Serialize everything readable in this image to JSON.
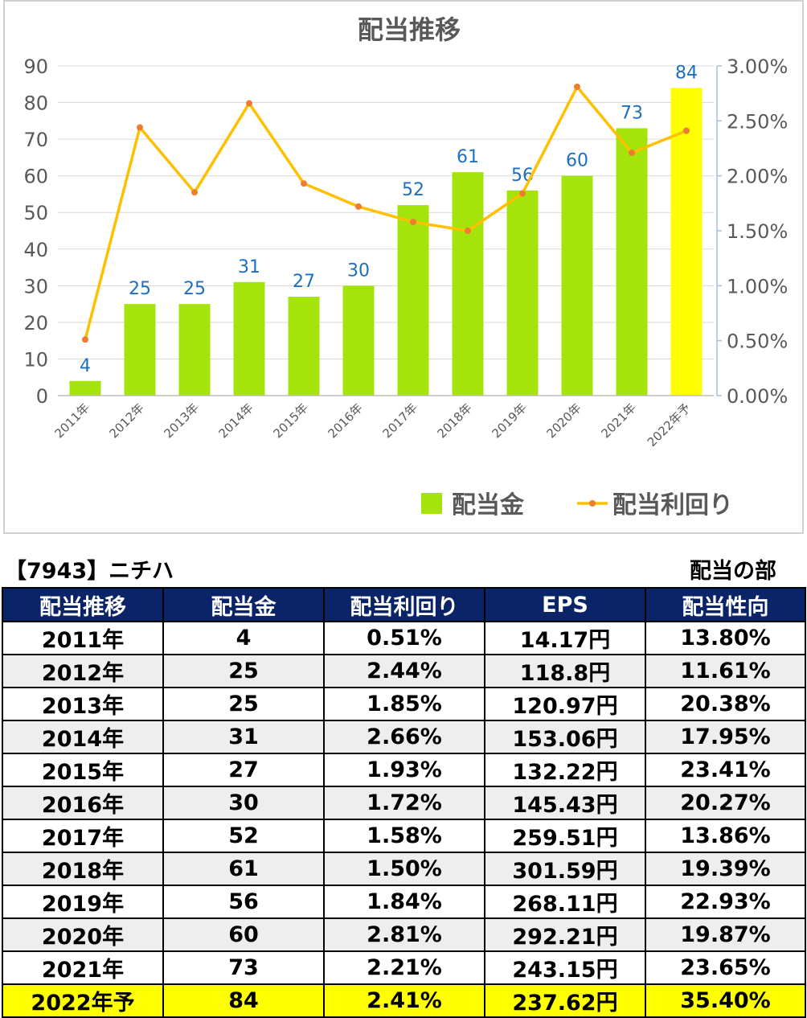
{
  "chart_data": {
    "type": "bar",
    "title": "配当推移",
    "categories": [
      "2011年",
      "2012年",
      "2013年",
      "2014年",
      "2015年",
      "2016年",
      "2017年",
      "2018年",
      "2019年",
      "2020年",
      "2021年",
      "2022年予"
    ],
    "series": [
      {
        "name": "配当金",
        "type": "bar",
        "axis": "left",
        "values": [
          4,
          25,
          25,
          31,
          27,
          30,
          52,
          61,
          56,
          60,
          73,
          84
        ],
        "color": "#a4e40a",
        "highlight_color": "#ffff00",
        "highlight_index": 11
      },
      {
        "name": "配当利回り",
        "type": "line",
        "axis": "right",
        "values": [
          0.51,
          2.44,
          1.85,
          2.66,
          1.93,
          1.72,
          1.58,
          1.5,
          1.84,
          2.81,
          2.21,
          2.41
        ],
        "color": "#ffc000",
        "marker_color": "#ed7d31"
      }
    ],
    "y_left": {
      "range": [
        0,
        90
      ],
      "ticks": [
        "0",
        "10",
        "20",
        "30",
        "40",
        "50",
        "60",
        "70",
        "80",
        "90"
      ]
    },
    "y_right": {
      "range": [
        0,
        3
      ],
      "ticks": [
        "0.00%",
        "0.50%",
        "1.00%",
        "1.50%",
        "2.00%",
        "2.50%",
        "3.00%"
      ]
    },
    "data_label_color": "#1f6fbf",
    "grid": true,
    "legend_position": "bottom-right"
  },
  "table": {
    "company_label": "【7943】ニチハ",
    "section_label": "配当の部",
    "columns": [
      "配当推移",
      "配当金",
      "配当利回り",
      "EPS",
      "配当性向"
    ],
    "rows": [
      [
        "2011年",
        "4",
        "0.51%",
        "14.17円",
        "13.80%"
      ],
      [
        "2012年",
        "25",
        "2.44%",
        "118.8円",
        "11.61%"
      ],
      [
        "2013年",
        "25",
        "1.85%",
        "120.97円",
        "20.38%"
      ],
      [
        "2014年",
        "31",
        "2.66%",
        "153.06円",
        "17.95%"
      ],
      [
        "2015年",
        "27",
        "1.93%",
        "132.22円",
        "23.41%"
      ],
      [
        "2016年",
        "30",
        "1.72%",
        "145.43円",
        "20.27%"
      ],
      [
        "2017年",
        "52",
        "1.58%",
        "259.51円",
        "13.86%"
      ],
      [
        "2018年",
        "61",
        "1.50%",
        "301.59円",
        "19.39%"
      ],
      [
        "2019年",
        "56",
        "1.84%",
        "268.11円",
        "22.93%"
      ],
      [
        "2020年",
        "60",
        "2.81%",
        "292.21円",
        "19.87%"
      ],
      [
        "2021年",
        "73",
        "2.21%",
        "243.15円",
        "23.65%"
      ],
      [
        "2022年予",
        "84",
        "2.41%",
        "237.62円",
        "35.40%"
      ]
    ],
    "colors": {
      "header_bg": "#0b2467",
      "stripe": "#eeeeee",
      "forecast_bg": "#ffff00"
    }
  }
}
